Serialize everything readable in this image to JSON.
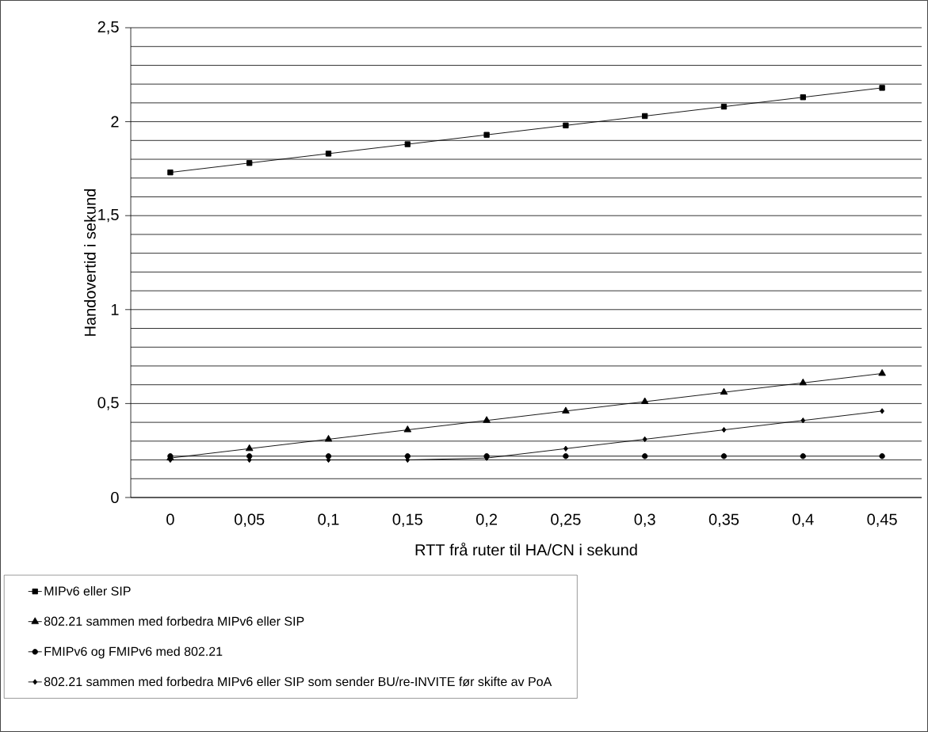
{
  "chart_data": {
    "type": "line",
    "xlabel": "RTT frå ruter til HA/CN i sekund",
    "ylabel": "Handovertid i sekund",
    "categories": [
      "0",
      "0,05",
      "0,1",
      "0,15",
      "0,2",
      "0,25",
      "0,3",
      "0,35",
      "0,4",
      "0,45"
    ],
    "series": [
      {
        "name": "MIPv6 eller SIP",
        "color": "#000000",
        "marker": "square",
        "values": [
          1.73,
          1.78,
          1.83,
          1.88,
          1.93,
          1.98,
          2.03,
          2.08,
          2.13,
          2.18
        ]
      },
      {
        "name": "802.21 sammen med forbedra MIPv6 eller SIP",
        "color": "#000000",
        "marker": "triangle",
        "values": [
          0.21,
          0.26,
          0.31,
          0.36,
          0.41,
          0.46,
          0.51,
          0.56,
          0.61,
          0.66
        ]
      },
      {
        "name": "FMIPv6 og FMIPv6 med 802.21",
        "color": "#000000",
        "marker": "circle",
        "values": [
          0.22,
          0.22,
          0.22,
          0.22,
          0.22,
          0.22,
          0.22,
          0.22,
          0.22,
          0.22
        ]
      },
      {
        "name": "802.21 sammen med forbedra MIPv6 eller SIP som sender BU/re-INVITE før skifte av PoA",
        "color": "#000000",
        "marker": "diamond",
        "values": [
          0.2,
          0.2,
          0.2,
          0.2,
          0.21,
          0.26,
          0.31,
          0.36,
          0.41,
          0.46
        ]
      }
    ],
    "ylim": [
      0,
      2.5
    ],
    "yticks": [
      0,
      {
        "value": 0.1,
        "label": null
      },
      {
        "value": 0.2,
        "label": null
      },
      {
        "value": 0.3,
        "label": null
      },
      {
        "value": 0.4,
        "label": null
      },
      {
        "value": 0.5,
        "label": "0,5"
      },
      {
        "value": 0.6,
        "label": null
      },
      {
        "value": 0.7,
        "label": null
      },
      {
        "value": 0.8,
        "label": null
      },
      {
        "value": 0.9,
        "label": null
      },
      1,
      {
        "value": 1.1,
        "label": null
      },
      {
        "value": 1.2,
        "label": null
      },
      {
        "value": 1.3,
        "label": null
      },
      {
        "value": 1.4,
        "label": null
      },
      {
        "value": 1.5,
        "label": "1,5"
      },
      {
        "value": 1.6,
        "label": null
      },
      {
        "value": 1.7,
        "label": null
      },
      {
        "value": 1.8,
        "label": null
      },
      {
        "value": 1.9,
        "label": null
      },
      2,
      {
        "value": 2.1,
        "label": null
      },
      {
        "value": 2.2,
        "label": null
      },
      {
        "value": 2.3,
        "label": null
      },
      {
        "value": 2.4,
        "label": null
      },
      {
        "value": 2.5,
        "label": "2,5"
      }
    ],
    "grid": "y",
    "legend": "bottom",
    "line_style": "solid"
  }
}
